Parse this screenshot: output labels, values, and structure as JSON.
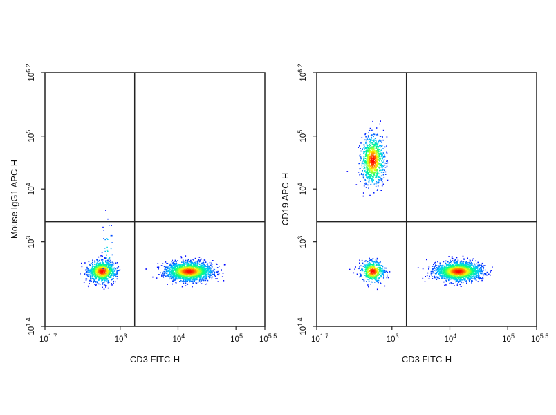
{
  "chart_data": [
    {
      "type": "scatter",
      "title": "",
      "xlabel": "CD3 FITC-H",
      "ylabel": "Mouse IgG1 APC-H",
      "x_scale": "log10",
      "y_scale": "log10",
      "xlim_log10": [
        1.7,
        5.5
      ],
      "ylim_log10": [
        1.4,
        6.2
      ],
      "x_tick_labels": [
        {
          "base": "10",
          "exp": "1.7",
          "at": 1.7
        },
        {
          "base": "10",
          "exp": "3",
          "at": 3
        },
        {
          "base": "10",
          "exp": "4",
          "at": 4
        },
        {
          "base": "10",
          "exp": "5",
          "at": 5
        },
        {
          "base": "10",
          "exp": "5.5",
          "at": 5.5
        }
      ],
      "y_tick_labels": [
        {
          "base": "10",
          "exp": "1.4",
          "at": 1.4
        },
        {
          "base": "10",
          "exp": "3",
          "at": 3
        },
        {
          "base": "10",
          "exp": "4",
          "at": 4
        },
        {
          "base": "10",
          "exp": "5",
          "at": 5
        },
        {
          "base": "10",
          "exp": "6.2",
          "at": 6.2
        }
      ],
      "quadrant_gate": {
        "x_log10": 3.25,
        "y_log10": 3.38
      },
      "populations": [
        {
          "center": [
            2.68,
            2.45
          ],
          "spread": [
            0.12,
            0.1
          ],
          "count": 900
        },
        {
          "center": [
            4.18,
            2.45
          ],
          "spread": [
            0.2,
            0.09
          ],
          "count": 1700
        },
        {
          "center": [
            2.78,
            2.8
          ],
          "spread": [
            0.05,
            0.3
          ],
          "count": 40
        }
      ],
      "colormap": [
        "#0000ff",
        "#00c8ff",
        "#00ff80",
        "#ffff00",
        "#ff0000"
      ]
    },
    {
      "type": "scatter",
      "title": "",
      "xlabel": "CD3 FITC-H",
      "ylabel": "CD19 APC-H",
      "x_scale": "log10",
      "y_scale": "log10",
      "xlim_log10": [
        1.7,
        5.5
      ],
      "ylim_log10": [
        1.4,
        6.2
      ],
      "x_tick_labels": [
        {
          "base": "10",
          "exp": "1.7",
          "at": 1.7
        },
        {
          "base": "10",
          "exp": "3",
          "at": 3
        },
        {
          "base": "10",
          "exp": "4",
          "at": 4
        },
        {
          "base": "10",
          "exp": "5",
          "at": 5
        },
        {
          "base": "10",
          "exp": "5.5",
          "at": 5.5
        }
      ],
      "y_tick_labels": [
        {
          "base": "10",
          "exp": "1.4",
          "at": 1.4
        },
        {
          "base": "10",
          "exp": "3",
          "at": 3
        },
        {
          "base": "10",
          "exp": "4",
          "at": 4
        },
        {
          "base": "10",
          "exp": "5",
          "at": 5
        },
        {
          "base": "10",
          "exp": "6.2",
          "at": 6.2
        }
      ],
      "quadrant_gate": {
        "x_log10": 3.25,
        "y_log10": 3.38
      },
      "populations": [
        {
          "center": [
            2.66,
            4.55
          ],
          "spread": [
            0.1,
            0.23
          ],
          "count": 850
        },
        {
          "center": [
            2.66,
            2.45
          ],
          "spread": [
            0.1,
            0.1
          ],
          "count": 500
        },
        {
          "center": [
            4.14,
            2.45
          ],
          "spread": [
            0.2,
            0.09
          ],
          "count": 1700
        }
      ],
      "colormap": [
        "#0000ff",
        "#00c8ff",
        "#00ff80",
        "#ffff00",
        "#ff0000"
      ]
    }
  ]
}
